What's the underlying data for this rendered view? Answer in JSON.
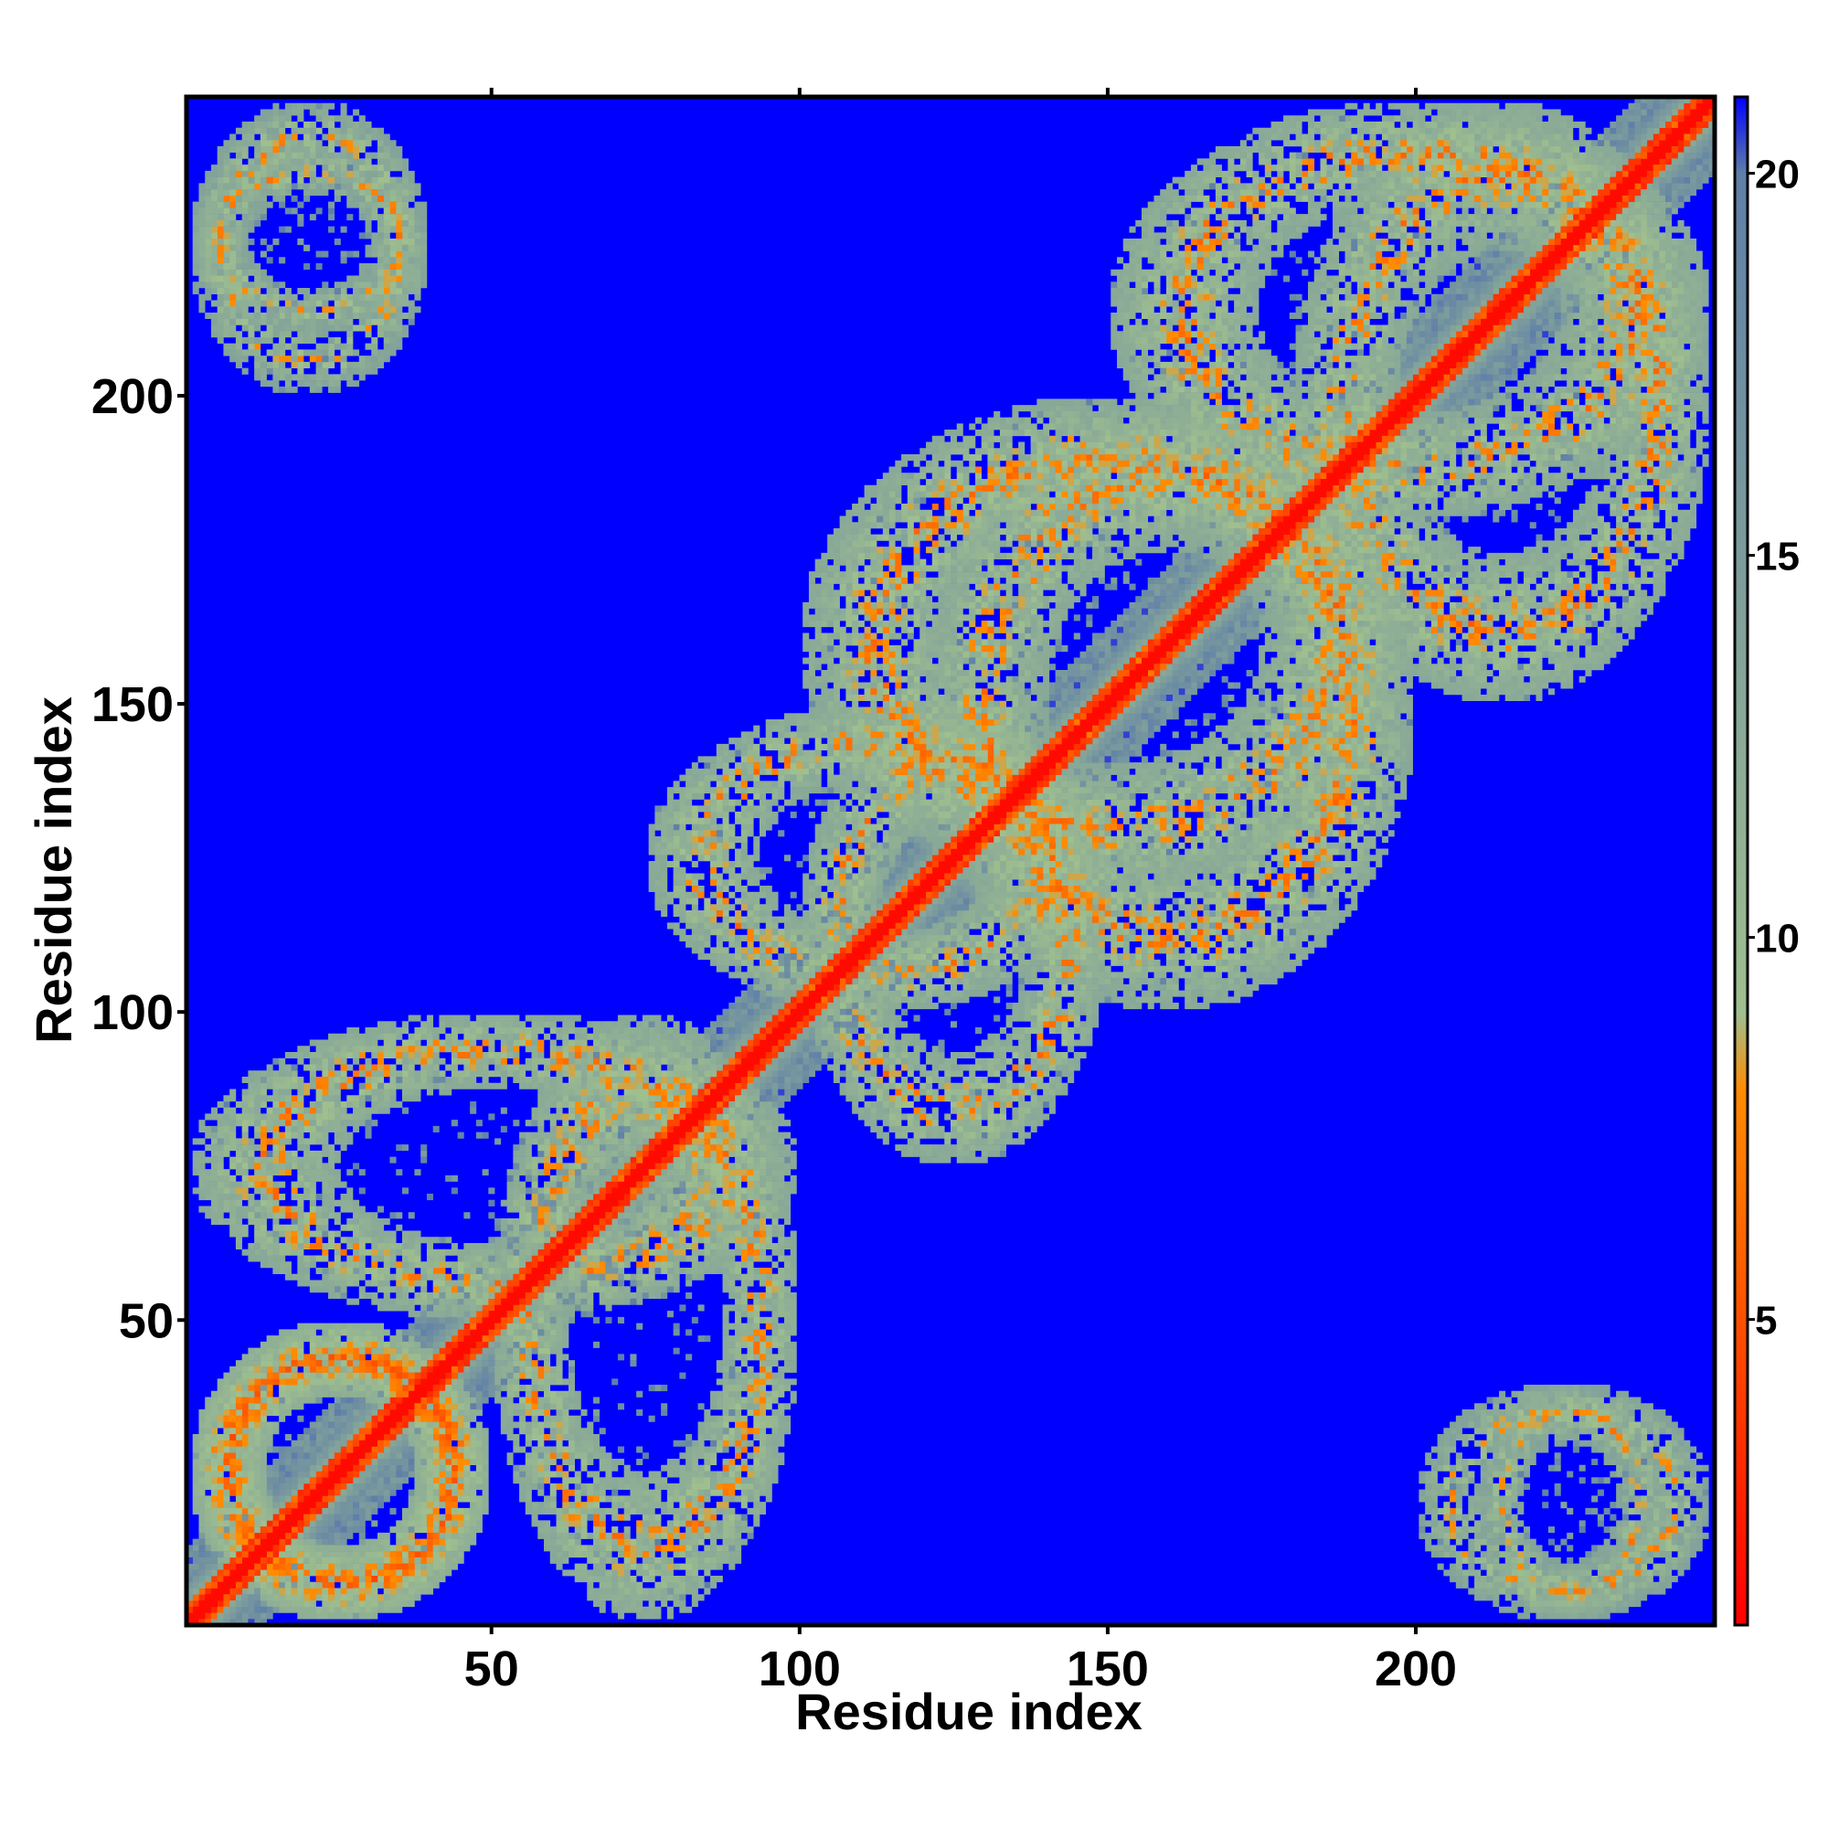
{
  "chart_data": {
    "type": "heatmap",
    "title": "",
    "xlabel": "Residue index",
    "ylabel": "Residue index",
    "xlim": [
      1,
      248
    ],
    "ylim": [
      1,
      248
    ],
    "x_ticks": [
      "50",
      "100",
      "150",
      "200"
    ],
    "y_ticks": [
      "50",
      "100",
      "150",
      "200"
    ],
    "colorbar": {
      "range": [
        1,
        21
      ],
      "ticks": [
        "5",
        "10",
        "15",
        "20"
      ],
      "colors": [
        "#ff0000",
        "#ff8c00",
        "#9fbf8f",
        "#5f7fa8",
        "#0000ff"
      ],
      "stops": [
        1,
        8,
        9,
        20,
        21
      ]
    },
    "cmap_value_at_far": 21,
    "structure": {
      "description_values": "symmetric residue-residue distance map; diagonal values ~1-3, near contacts 3-9, intermediate 9-20, background 21",
      "diagonal_band_value": 2,
      "background_value": 21,
      "contact_regions": [
        {
          "x": [
            1,
            50
          ],
          "y": [
            1,
            50
          ],
          "level": 12
        },
        {
          "x": [
            50,
            100
          ],
          "y": [
            1,
            100
          ],
          "level": 13
        },
        {
          "x": [
            100,
            150
          ],
          "y": [
            75,
            150
          ],
          "level": 13
        },
        {
          "x": [
            120,
            200
          ],
          "y": [
            100,
            200
          ],
          "level": 13
        },
        {
          "x": [
            180,
            248
          ],
          "y": [
            150,
            248
          ],
          "level": 13
        },
        {
          "x": [
            1,
            40
          ],
          "y": [
            200,
            248
          ],
          "level": 14
        },
        {
          "x": [
            210,
            240
          ],
          "y": [
            1,
            40
          ],
          "level": 14
        }
      ]
    },
    "grid": false,
    "legend": "colorbar-right"
  }
}
